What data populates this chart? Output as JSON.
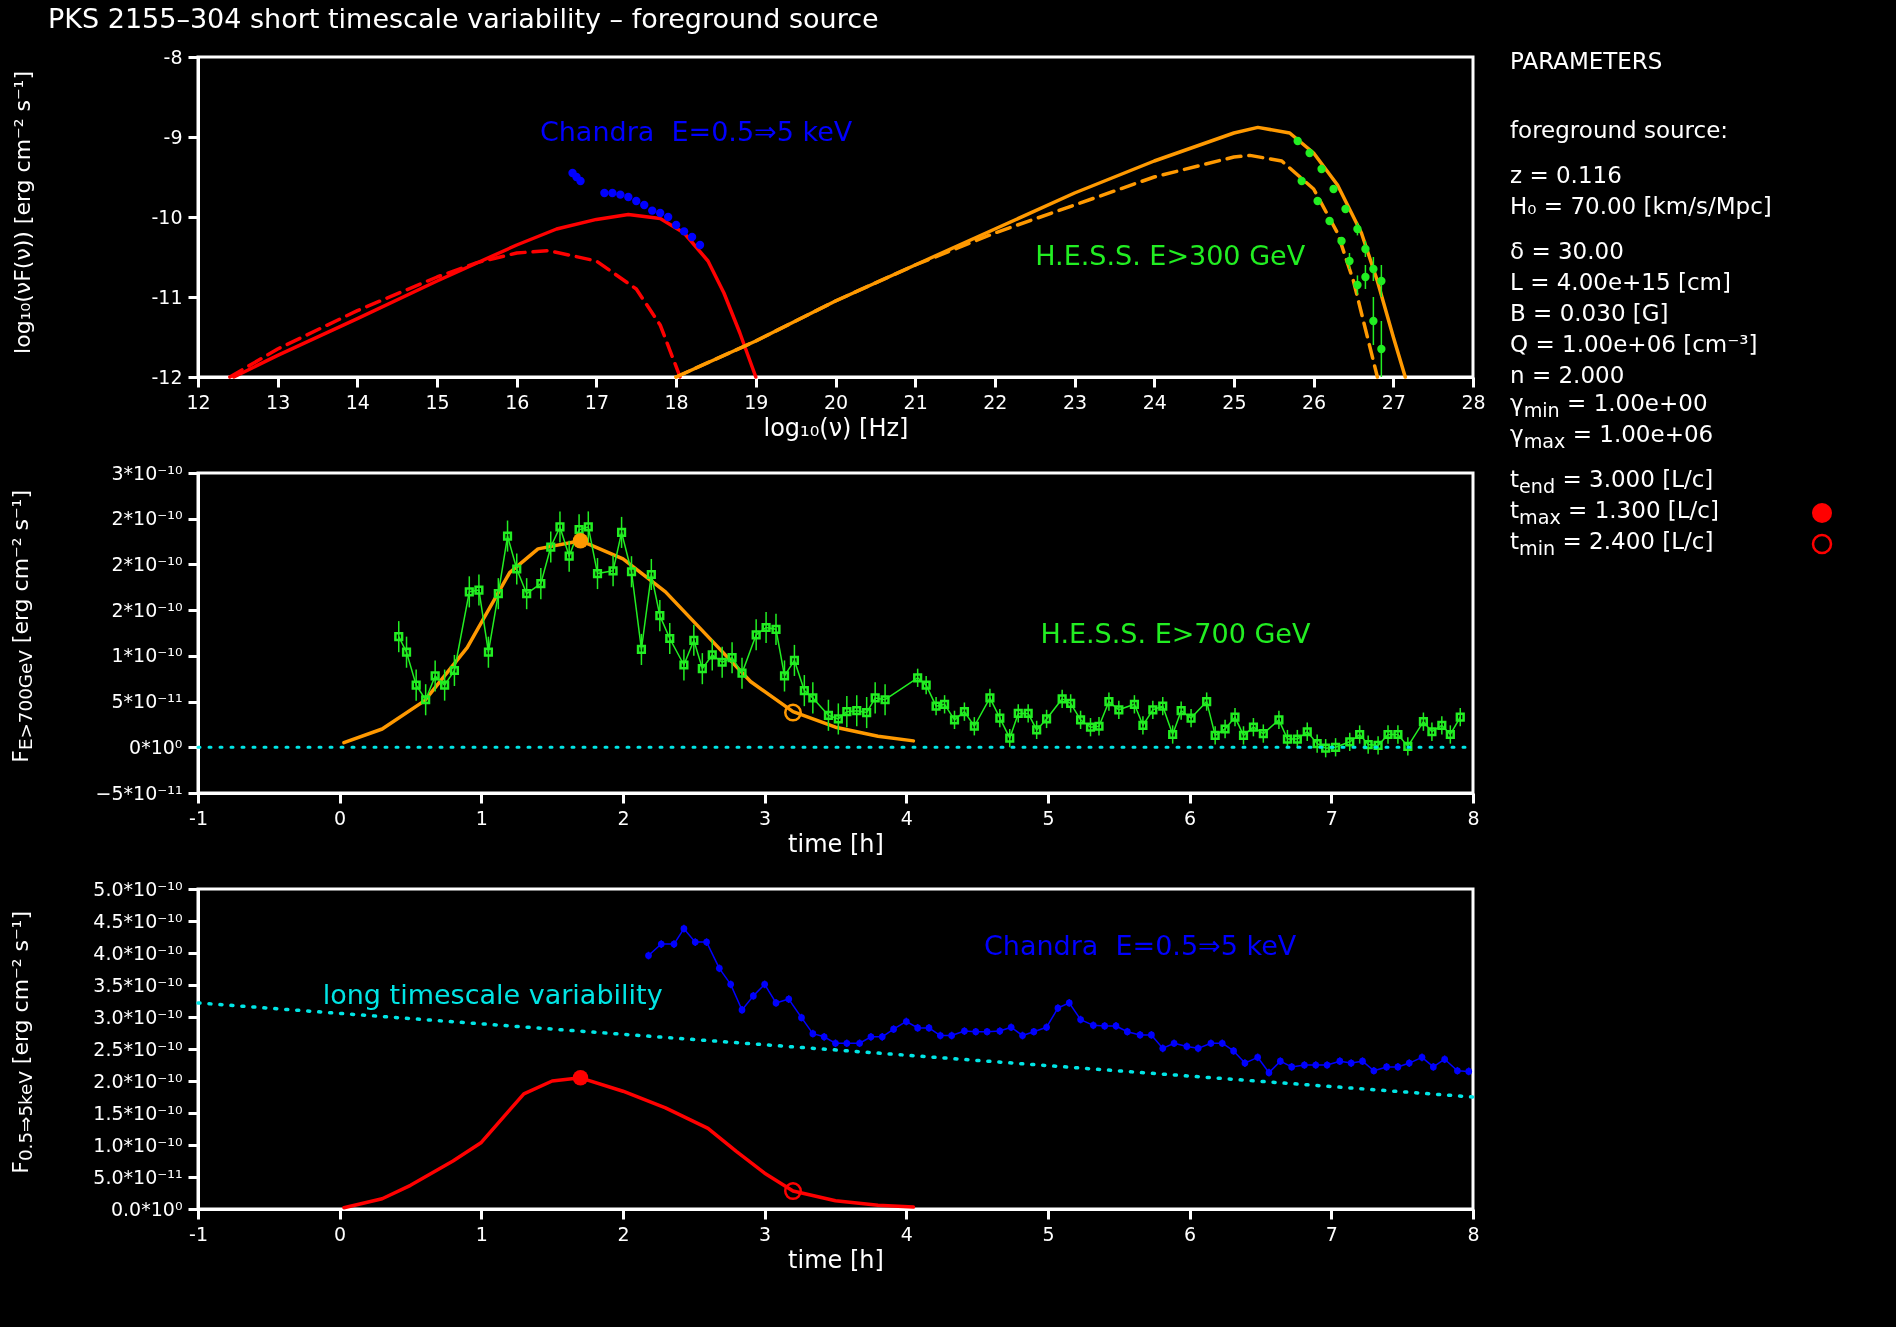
{
  "chart_data": [
    {
      "type": "line",
      "title": "PKS 2155–304 short timescale variability – foreground source",
      "xlabel": "log₁₀(ν) [Hz]",
      "ylabel": "log₁₀(νF(ν)) [erg cm⁻² s⁻¹]",
      "xlim": [
        12,
        28
      ],
      "xticks": [
        12,
        13,
        14,
        15,
        16,
        17,
        18,
        19,
        20,
        21,
        22,
        23,
        24,
        25,
        26,
        27,
        28
      ],
      "ylim": [
        -12,
        -8
      ],
      "yticks": [
        -12,
        -11,
        -10,
        -9,
        -8
      ],
      "series": [
        {
          "color": "#ff0000",
          "line_style": "solid",
          "x": [
            12.45,
            13,
            14,
            15,
            16,
            16.5,
            17,
            17.4,
            17.8,
            18.1,
            18.4,
            18.6,
            18.8,
            19.0
          ],
          "values": [
            -12,
            -11.73,
            -11.27,
            -10.8,
            -10.35,
            -10.15,
            -10.03,
            -9.97,
            -10.02,
            -10.2,
            -10.55,
            -10.95,
            -11.45,
            -12
          ]
        },
        {
          "color": "#ff0000",
          "line_style": "dashed",
          "x": [
            12.4,
            13,
            14,
            15,
            15.5,
            16,
            16.4,
            17,
            17.5,
            17.8,
            18.05
          ],
          "values": [
            -12,
            -11.65,
            -11.17,
            -10.75,
            -10.57,
            -10.45,
            -10.42,
            -10.55,
            -10.9,
            -11.35,
            -12
          ]
        },
        {
          "color": "#ff9900",
          "line_style": "solid",
          "x": [
            18,
            19,
            20,
            21,
            22,
            23,
            24,
            25,
            25.3,
            25.7,
            26,
            26.3,
            26.6,
            26.8,
            27,
            27.15
          ],
          "values": [
            -12,
            -11.55,
            -11.05,
            -10.6,
            -10.15,
            -9.7,
            -9.3,
            -8.95,
            -8.88,
            -8.95,
            -9.2,
            -9.6,
            -10.2,
            -10.8,
            -11.5,
            -12
          ]
        },
        {
          "color": "#ff9900",
          "line_style": "dashed",
          "x": [
            18,
            19,
            20,
            21,
            22,
            23,
            24,
            25,
            25.2,
            25.6,
            26,
            26.3,
            26.5,
            26.7,
            26.8
          ],
          "values": [
            -12,
            -11.55,
            -11.05,
            -10.6,
            -10.2,
            -9.85,
            -9.5,
            -9.25,
            -9.23,
            -9.3,
            -9.65,
            -10.2,
            -10.8,
            -11.6,
            -12
          ]
        },
        {
          "type": "scatter",
          "name": "Chandra  E=0.5⇒5 keV",
          "color": "#0000ff",
          "marker": "circle",
          "x": [
            16.7,
            16.75,
            16.8,
            17.1,
            17.2,
            17.3,
            17.4,
            17.5,
            17.6,
            17.7,
            17.8,
            17.9,
            18.0,
            18.1,
            18.2,
            18.3
          ],
          "values": [
            -9.45,
            -9.5,
            -9.55,
            -9.7,
            -9.7,
            -9.72,
            -9.75,
            -9.8,
            -9.85,
            -9.92,
            -9.95,
            -10.0,
            -10.1,
            -10.18,
            -10.25,
            -10.35
          ]
        },
        {
          "type": "scatter",
          "name": "H.E.S.S. E>300 GeV",
          "color": "#22ee22",
          "marker": "circle",
          "x": [
            25.8,
            25.95,
            26.1,
            26.25,
            26.4,
            26.55,
            26.65,
            26.75,
            26.85,
            25.85,
            26.05,
            26.2,
            26.35,
            26.45,
            26.55,
            26.65,
            26.75,
            26.85
          ],
          "values": [
            -9.05,
            -9.2,
            -9.4,
            -9.65,
            -9.9,
            -10.15,
            -10.4,
            -10.65,
            -10.8,
            -9.55,
            -9.8,
            -10.05,
            -10.3,
            -10.55,
            -10.85,
            -10.75,
            -11.3,
            -11.65
          ],
          "errors": [
            null,
            null,
            null,
            null,
            null,
            0.08,
            0.1,
            0.15,
            0.2,
            null,
            null,
            null,
            null,
            0.1,
            0.12,
            0.15,
            0.3,
            0.35
          ]
        }
      ]
    },
    {
      "type": "line",
      "xlabel": "time [h]",
      "ylabel": "F$_{E>700GeV}$ [erg cm⁻² s⁻¹]",
      "xlim": [
        -1,
        8
      ],
      "xticks": [
        -1,
        0,
        1,
        2,
        3,
        4,
        5,
        6,
        7,
        8
      ],
      "ylim": [
        -5e-11,
        3e-10
      ],
      "yticks": [
        {
          "value": -5e-11,
          "label": "−5*10⁻¹¹"
        },
        {
          "value": 0,
          "label": "0*10⁰"
        },
        {
          "value": 5e-11,
          "label": "5*10⁻¹¹"
        },
        {
          "value": 1e-10,
          "label": "1*10⁻¹⁰"
        },
        {
          "value": 1.5e-10,
          "label": "2*10⁻¹⁰"
        },
        {
          "value": 2e-10,
          "label": "2*10⁻¹⁰"
        },
        {
          "value": 2.5e-10,
          "label": "2*10⁻¹⁰"
        },
        {
          "value": 3e-10,
          "label": "3*10⁻¹⁰"
        }
      ],
      "ref_lines": [
        {
          "axis": "y",
          "value": 0,
          "color": "#00e5e5",
          "line_style": "dotted"
        }
      ],
      "series": [
        {
          "color": "#ff9900",
          "line_style": "solid",
          "x": [
            0.03,
            0.3,
            0.6,
            0.9,
            1.2,
            1.4,
            1.7,
            2.0,
            2.3,
            2.6,
            2.9,
            3.2,
            3.5,
            3.8,
            4.05
          ],
          "values": [
            5e-12,
            2e-11,
            5.1e-11,
            1.09e-10,
            1.91e-10,
            2.17e-10,
            2.26e-10,
            2.06e-10,
            1.7e-10,
            1.21e-10,
            7.2e-11,
            3.9e-11,
            2.2e-11,
            1.2e-11,
            7e-12
          ]
        },
        {
          "name": "H.E.S.S. E>700 GeV",
          "color": "#22ee22",
          "line_style": "solid",
          "marker": "square",
          "x": [
            0.417,
            0.472,
            0.54,
            0.607,
            0.674,
            0.741,
            0.81,
            0.915,
            0.983,
            1.05,
            1.12,
            1.185,
            1.25,
            1.32,
            1.42,
            1.49,
            1.555,
            1.62,
            1.69,
            1.755,
            1.82,
            1.93,
            1.99,
            2.06,
            2.13,
            2.2,
            2.26,
            2.33,
            2.43,
            2.5,
            2.56,
            2.63,
            2.7,
            2.77,
            2.84,
            2.94,
            3.01,
            3.08,
            3.14,
            3.21,
            3.28,
            3.34,
            3.45,
            3.52,
            3.58,
            3.65,
            3.72,
            3.78,
            3.85,
            4.08,
            4.14,
            4.21,
            4.27,
            4.34,
            4.41,
            4.48,
            4.59,
            4.66,
            4.73,
            4.79,
            4.86,
            4.92,
            4.99,
            5.1,
            5.16,
            5.23,
            5.3,
            5.36,
            5.43,
            5.5,
            5.61,
            5.67,
            5.74,
            5.81,
            5.88,
            5.94,
            6.01,
            6.12,
            6.18,
            6.25,
            6.32,
            6.38,
            6.45,
            6.52,
            6.63,
            6.69,
            6.76,
            6.83,
            6.9,
            6.96,
            7.03,
            7.13,
            7.2,
            7.26,
            7.33,
            7.4,
            7.47,
            7.54,
            7.65,
            7.71,
            7.78,
            7.84,
            7.91
          ],
          "values": [
            1.21e-10,
            1.04e-10,
            6.8e-11,
            5.2e-11,
            7.8e-11,
            6.8e-11,
            8.4e-11,
            1.7e-10,
            1.72e-10,
            1.04e-10,
            1.68e-10,
            2.31e-10,
            1.95e-10,
            1.68e-10,
            1.79e-10,
            2.19e-10,
            2.41e-10,
            2.09e-10,
            2.38e-10,
            2.41e-10,
            1.9e-10,
            1.93e-10,
            2.35e-10,
            1.92e-10,
            1.07e-10,
            1.89e-10,
            1.44e-10,
            1.19e-10,
            9e-11,
            1.17e-10,
            8.6e-11,
            1.01e-10,
            9.3e-11,
            9.8e-11,
            8.1e-11,
            1.23e-10,
            1.31e-10,
            1.29e-10,
            7.8e-11,
            9.5e-11,
            6.2e-11,
            5.4e-11,
            3.5e-11,
            3.1e-11,
            3.9e-11,
            4e-11,
            3.8e-11,
            5.4e-11,
            5.2e-11,
            7.6e-11,
            6.8e-11,
            4.5e-11,
            4.7e-11,
            3e-11,
            3.9e-11,
            2.3e-11,
            5.4e-11,
            3.2e-11,
            1e-11,
            3.7e-11,
            3.7e-11,
            1.9e-11,
            3.1e-11,
            5.3e-11,
            4.8e-11,
            3e-11,
            2.2e-11,
            2.3e-11,
            5e-11,
            4.1e-11,
            4.7e-11,
            2.4e-11,
            4.1e-11,
            4.5e-11,
            1.4e-11,
            4e-11,
            3.2e-11,
            5e-11,
            1.3e-11,
            2e-11,
            3.3e-11,
            1.3e-11,
            2.2e-11,
            1.5e-11,
            3e-11,
            9e-12,
            9e-12,
            1.7e-11,
            4e-12,
            -1e-12,
            0,
            6e-12,
            1.4e-11,
            3e-12,
            2e-12,
            1.4e-11,
            1.4e-11,
            1e-12,
            2.8e-11,
            1.7e-11,
            2.4e-11,
            1.4e-11,
            3.3e-11
          ],
          "errors": [
            1.7e-11,
            1.7e-11,
            1.7e-11,
            1.7e-11,
            1.7e-11,
            1.7e-11,
            1.7e-11,
            1.7e-11,
            1.7e-11,
            1.7e-11,
            1.7e-11,
            1.7e-11,
            1.7e-11,
            1.7e-11,
            1.7e-11,
            1.7e-11,
            1.7e-11,
            1.7e-11,
            1.7e-11,
            1.7e-11,
            1.7e-11,
            1.7e-11,
            1.7e-11,
            1.7e-11,
            1.7e-11,
            1.7e-11,
            1.7e-11,
            1.7e-11,
            1.7e-11,
            1.7e-11,
            1.7e-11,
            1.7e-11,
            1.7e-11,
            1.7e-11,
            1.7e-11,
            1.7e-11,
            1.7e-11,
            1.7e-11,
            1.7e-11,
            1.7e-11,
            1.7e-11,
            1.7e-11,
            1.7e-11,
            1.7e-11,
            1.7e-11,
            1.7e-11,
            1.7e-11,
            1.7e-11,
            1.7e-11,
            1e-11,
            1e-11,
            1e-11,
            1e-11,
            1e-11,
            1e-11,
            1e-11,
            1e-11,
            1e-11,
            1e-11,
            1e-11,
            1e-11,
            1e-11,
            1e-11,
            1e-11,
            1e-11,
            1e-11,
            1e-11,
            1e-11,
            1e-11,
            1e-11,
            1e-11,
            1e-11,
            1e-11,
            1e-11,
            1e-11,
            1e-11,
            1e-11,
            1e-11,
            1e-11,
            1e-11,
            1e-11,
            1e-11,
            1e-11,
            1e-11,
            1e-11,
            1e-11,
            1e-11,
            1e-11,
            1e-11,
            1e-11,
            1e-11,
            1e-11,
            1e-11,
            1e-11,
            1e-11,
            1e-11,
            1e-11,
            1e-11,
            1e-11,
            1e-11,
            1e-11,
            1e-11,
            1e-11
          ]
        },
        {
          "type": "scatter",
          "color": "#ff9900",
          "marker": "circle",
          "x": [
            1.7
          ],
          "values": [
            2.26e-10
          ]
        },
        {
          "type": "scatter",
          "color": "#ff9900",
          "marker": "circle",
          "x": [
            3.2
          ],
          "values": [
            3.8e-11
          ]
        }
      ]
    },
    {
      "type": "line",
      "xlabel": "time [h]",
      "ylabel": "F$_{0.5⇒5keV}$ [erg cm⁻² s⁻¹]",
      "xlim": [
        -1,
        8
      ],
      "xticks": [
        -1,
        0,
        1,
        2,
        3,
        4,
        5,
        6,
        7,
        8
      ],
      "ylim": [
        0,
        5e-10
      ],
      "yticks": [
        {
          "value": 0,
          "label": "0.0*10⁰"
        },
        {
          "value": 5e-11,
          "label": "5.0*10⁻¹¹"
        },
        {
          "value": 1e-10,
          "label": "1.0*10⁻¹⁰"
        },
        {
          "value": 1.5e-10,
          "label": "1.5*10⁻¹⁰"
        },
        {
          "value": 2e-10,
          "label": "2.0*10⁻¹⁰"
        },
        {
          "value": 2.5e-10,
          "label": "2.5*10⁻¹⁰"
        },
        {
          "value": 3e-10,
          "label": "3.0*10⁻¹⁰"
        },
        {
          "value": 3.5e-10,
          "label": "3.5*10⁻¹⁰"
        },
        {
          "value": 4e-10,
          "label": "4.0*10⁻¹⁰"
        },
        {
          "value": 4.5e-10,
          "label": "4.5*10⁻¹⁰"
        },
        {
          "value": 5e-10,
          "label": "5.0*10⁻¹⁰"
        }
      ],
      "series": [
        {
          "name": "long timescale variability",
          "color": "#00e5e5",
          "line_style": "dotted",
          "x": [
            -1,
            8
          ],
          "values": [
            3.22e-10,
            1.75e-10
          ]
        },
        {
          "name": "Chandra  E=0.5⇒5 keV",
          "color": "#0000ff",
          "line_style": "solid",
          "marker": "circle",
          "x": [
            2.18,
            2.27,
            2.36,
            2.43,
            2.51,
            2.59,
            2.68,
            2.76,
            2.84,
            2.92,
            3.0,
            3.08,
            3.17,
            3.26,
            3.34,
            3.42,
            3.5,
            3.58,
            3.67,
            3.75,
            3.83,
            3.91,
            4.0,
            4.08,
            4.16,
            4.24,
            4.32,
            4.41,
            4.49,
            4.57,
            4.66,
            4.74,
            4.82,
            4.9,
            4.99,
            5.07,
            5.15,
            5.23,
            5.32,
            5.4,
            5.48,
            5.56,
            5.65,
            5.73,
            5.81,
            5.89,
            5.98,
            6.06,
            6.15,
            6.23,
            6.31,
            6.39,
            6.48,
            6.56,
            6.64,
            6.72,
            6.81,
            6.89,
            6.97,
            7.06,
            7.14,
            7.22,
            7.3,
            7.39,
            7.47,
            7.55,
            7.64,
            7.72,
            7.8,
            7.89,
            7.97
          ],
          "values": [
            3.96e-10,
            4.14e-10,
            4.14e-10,
            4.38e-10,
            4.17e-10,
            4.17e-10,
            3.76e-10,
            3.51e-10,
            3.11e-10,
            3.33e-10,
            3.51e-10,
            3.22e-10,
            3.28e-10,
            2.99e-10,
            2.74e-10,
            2.69e-10,
            2.59e-10,
            2.59e-10,
            2.59e-10,
            2.69e-10,
            2.69e-10,
            2.81e-10,
            2.93e-10,
            2.83e-10,
            2.83e-10,
            2.71e-10,
            2.71e-10,
            2.78e-10,
            2.77e-10,
            2.77e-10,
            2.78e-10,
            2.84e-10,
            2.71e-10,
            2.77e-10,
            2.84e-10,
            3.14e-10,
            3.22e-10,
            2.96e-10,
            2.87e-10,
            2.86e-10,
            2.86e-10,
            2.77e-10,
            2.72e-10,
            2.72e-10,
            2.51e-10,
            2.59e-10,
            2.54e-10,
            2.51e-10,
            2.59e-10,
            2.59e-10,
            2.47e-10,
            2.28e-10,
            2.37e-10,
            2.13e-10,
            2.31e-10,
            2.22e-10,
            2.25e-10,
            2.25e-10,
            2.25e-10,
            2.31e-10,
            2.28e-10,
            2.31e-10,
            2.16e-10,
            2.22e-10,
            2.22e-10,
            2.28e-10,
            2.37e-10,
            2.22e-10,
            2.34e-10,
            2.16e-10,
            2.15e-10
          ],
          "errors": [
            6e-12,
            6e-12,
            6e-12,
            6e-12,
            6e-12,
            6e-12,
            6e-12,
            6e-12,
            6e-12,
            6e-12,
            6e-12,
            6e-12,
            6e-12,
            6e-12,
            6e-12,
            6e-12,
            6e-12,
            6e-12,
            6e-12,
            6e-12,
            6e-12,
            6e-12,
            6e-12,
            6e-12,
            6e-12,
            6e-12,
            6e-12,
            6e-12,
            6e-12,
            6e-12,
            6e-12,
            6e-12,
            6e-12,
            6e-12,
            6e-12,
            6e-12,
            6e-12,
            6e-12,
            6e-12,
            6e-12,
            6e-12,
            6e-12,
            6e-12,
            6e-12,
            6e-12,
            6e-12,
            6e-12,
            6e-12,
            6e-12,
            6e-12,
            6e-12,
            6e-12,
            6e-12,
            6e-12,
            6e-12,
            6e-12,
            6e-12,
            6e-12,
            6e-12,
            6e-12,
            6e-12,
            6e-12,
            6e-12,
            6e-12,
            6e-12,
            6e-12,
            6e-12,
            6e-12,
            6e-12,
            6e-12,
            6e-12
          ]
        },
        {
          "color": "#ff0000",
          "line_style": "solid",
          "x": [
            0.03,
            0.3,
            0.5,
            0.8,
            1.0,
            1.3,
            1.5,
            1.7,
            2.0,
            2.3,
            2.6,
            2.8,
            3.0,
            3.2,
            3.5,
            3.8,
            4.05
          ],
          "values": [
            2e-12,
            1.6e-11,
            3.7e-11,
            7.5e-11,
            1.04e-10,
            1.8e-10,
            2e-10,
            2.05e-10,
            1.84e-10,
            1.58e-10,
            1.26e-10,
            9e-11,
            5.6e-11,
            2.8e-11,
            1.3e-11,
            6e-12,
            3e-12
          ]
        },
        {
          "type": "scatter",
          "color": "#ff0000",
          "marker": "circle",
          "x": [
            1.7
          ],
          "values": [
            2.05e-10
          ]
        },
        {
          "type": "scatter",
          "color": "#ff0000",
          "marker": "circle",
          "x": [
            3.2
          ],
          "values": [
            2.8e-11
          ]
        }
      ]
    },
    {
      "type": "other",
      "title": "PARAMETERS",
      "annotations": [
        "foreground source:",
        "z = 0.116",
        "H₀ = 70.00 [km/s/Mpc]",
        "δ = 30.00",
        "L = 4.00e+15 [cm]",
        "B = 0.030 [G]",
        "Q = 1.00e+06 [cm⁻³]",
        "n = 2.000",
        "γ$_{min}$ = 1.00e+00",
        "γ$_{max}$ = 1.00e+06",
        "t$_{end}$ = 3.000 [L/c]",
        "t$_{max}$ = 1.300 [L/c]",
        "t$_{min}$ = 2.400 [L/c]"
      ]
    }
  ]
}
